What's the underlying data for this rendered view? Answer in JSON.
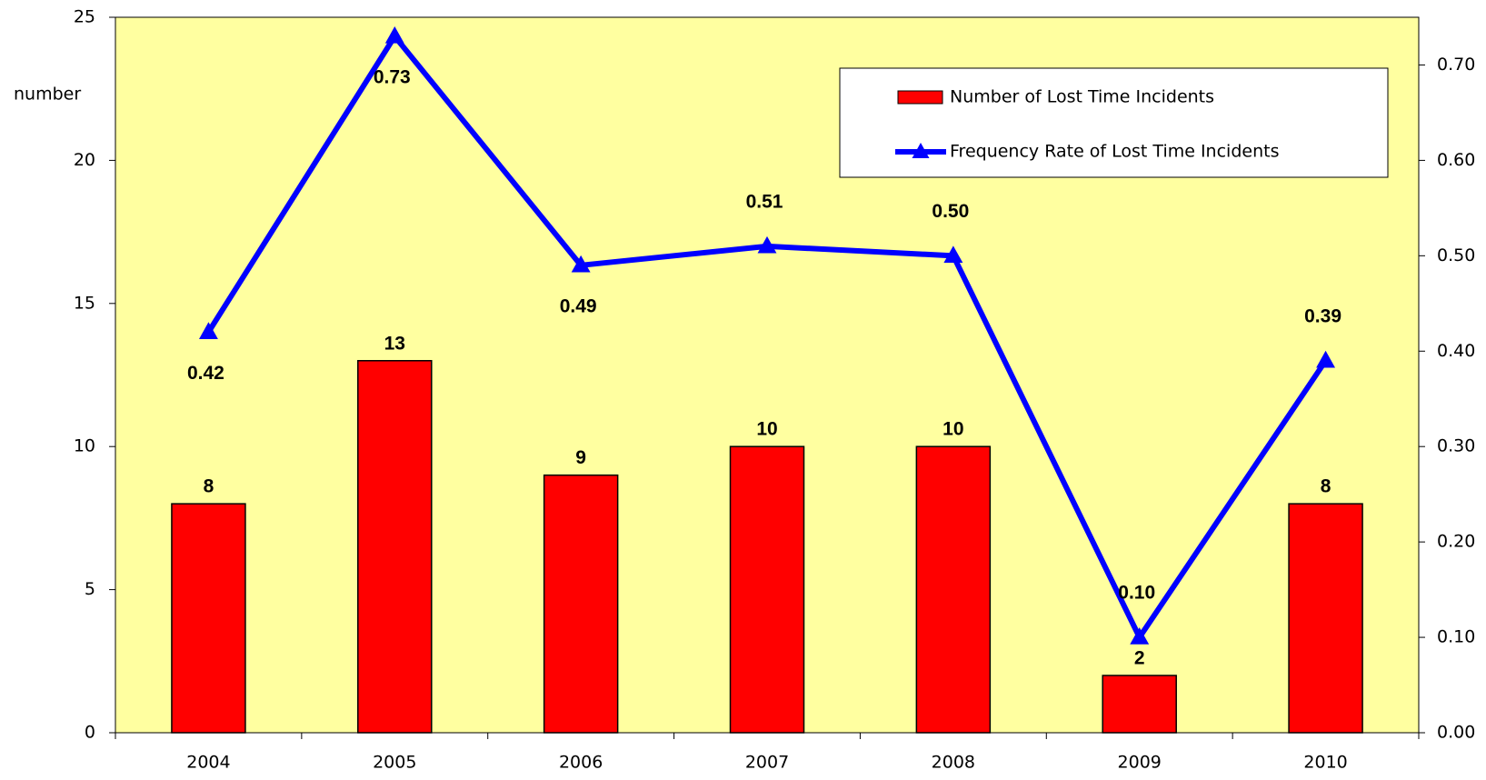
{
  "chart_data": {
    "type": "bar_line",
    "y_axis_label": "number",
    "categories": [
      "2004",
      "2005",
      "2006",
      "2007",
      "2008",
      "2009",
      "2010"
    ],
    "series": [
      {
        "name": "Number of Lost Time Incidents",
        "type": "bar",
        "color": "#ff0000",
        "axis": "y",
        "values": [
          8,
          13,
          9,
          10,
          10,
          2,
          8
        ]
      },
      {
        "name": "Frequency Rate of Lost Time Incidents",
        "type": "line",
        "color": "#0000ff",
        "axis": "y2",
        "values": [
          0.42,
          0.73,
          0.49,
          0.51,
          0.5,
          0.1,
          0.39
        ],
        "value_labels": [
          "0.42",
          "0.73",
          "0.49",
          "0.51",
          "0.50",
          "0.10",
          "0.39"
        ]
      }
    ],
    "ylim": [
      0,
      25
    ],
    "yticks": [
      0,
      5,
      10,
      15,
      20,
      25
    ],
    "y2lim": [
      0,
      0.75
    ],
    "y2ticks": [
      {
        "value": 0,
        "label": "0.00"
      },
      {
        "value": 0.1,
        "label": "0.10"
      },
      {
        "value": 0.2,
        "label": "0.20"
      },
      {
        "value": 0.3,
        "label": "0.30"
      },
      {
        "value": 0.4,
        "label": "0.40"
      },
      {
        "value": 0.5,
        "label": "0.50"
      },
      {
        "value": 0.6,
        "label": "0.60"
      },
      {
        "value": 0.7,
        "label": "0.70"
      }
    ],
    "plot_background": "#ffffa0",
    "legend": "top-right"
  }
}
